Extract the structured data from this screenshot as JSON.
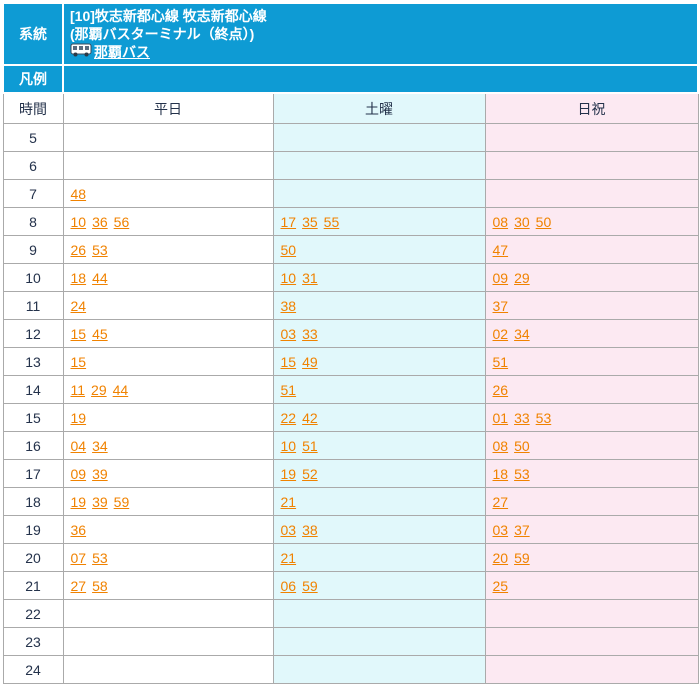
{
  "route": {
    "label": "系統",
    "title_line1": "[10]牧志新都心線 牧志新都心線",
    "title_line2": "(那覇バスターミナル（終点）)",
    "operator_link": "那覇バス",
    "bus_icon": "bus-icon"
  },
  "legend": {
    "label": "凡例",
    "content": ""
  },
  "columns": {
    "hour": "時間",
    "weekday": "平日",
    "saturday": "土曜",
    "holiday": "日祝"
  },
  "colors": {
    "header_bg": "#0e9bd4",
    "saturday_bg": "#e1f8fb",
    "holiday_bg": "#fce9f2",
    "link_orange": "#f08200",
    "text_navy": "#24324b",
    "border_gray": "#aaaaaa"
  },
  "timetable": {
    "rows": [
      {
        "hour": "5",
        "weekday": [],
        "saturday": [],
        "holiday": []
      },
      {
        "hour": "6",
        "weekday": [],
        "saturday": [],
        "holiday": []
      },
      {
        "hour": "7",
        "weekday": [
          "48"
        ],
        "saturday": [],
        "holiday": []
      },
      {
        "hour": "8",
        "weekday": [
          "10",
          "36",
          "56"
        ],
        "saturday": [
          "17",
          "35",
          "55"
        ],
        "holiday": [
          "08",
          "30",
          "50"
        ]
      },
      {
        "hour": "9",
        "weekday": [
          "26",
          "53"
        ],
        "saturday": [
          "50"
        ],
        "holiday": [
          "47"
        ]
      },
      {
        "hour": "10",
        "weekday": [
          "18",
          "44"
        ],
        "saturday": [
          "10",
          "31"
        ],
        "holiday": [
          "09",
          "29"
        ]
      },
      {
        "hour": "11",
        "weekday": [
          "24"
        ],
        "saturday": [
          "38"
        ],
        "holiday": [
          "37"
        ]
      },
      {
        "hour": "12",
        "weekday": [
          "15",
          "45"
        ],
        "saturday": [
          "03",
          "33"
        ],
        "holiday": [
          "02",
          "34"
        ]
      },
      {
        "hour": "13",
        "weekday": [
          "15"
        ],
        "saturday": [
          "15",
          "49"
        ],
        "holiday": [
          "51"
        ]
      },
      {
        "hour": "14",
        "weekday": [
          "11",
          "29",
          "44"
        ],
        "saturday": [
          "51"
        ],
        "holiday": [
          "26"
        ]
      },
      {
        "hour": "15",
        "weekday": [
          "19"
        ],
        "saturday": [
          "22",
          "42"
        ],
        "holiday": [
          "01",
          "33",
          "53"
        ]
      },
      {
        "hour": "16",
        "weekday": [
          "04",
          "34"
        ],
        "saturday": [
          "10",
          "51"
        ],
        "holiday": [
          "08",
          "50"
        ]
      },
      {
        "hour": "17",
        "weekday": [
          "09",
          "39"
        ],
        "saturday": [
          "19",
          "52"
        ],
        "holiday": [
          "18",
          "53"
        ]
      },
      {
        "hour": "18",
        "weekday": [
          "19",
          "39",
          "59"
        ],
        "saturday": [
          "21"
        ],
        "holiday": [
          "27"
        ]
      },
      {
        "hour": "19",
        "weekday": [
          "36"
        ],
        "saturday": [
          "03",
          "38"
        ],
        "holiday": [
          "03",
          "37"
        ]
      },
      {
        "hour": "20",
        "weekday": [
          "07",
          "53"
        ],
        "saturday": [
          "21"
        ],
        "holiday": [
          "20",
          "59"
        ]
      },
      {
        "hour": "21",
        "weekday": [
          "27",
          "58"
        ],
        "saturday": [
          "06",
          "59"
        ],
        "holiday": [
          "25"
        ]
      },
      {
        "hour": "22",
        "weekday": [],
        "saturday": [],
        "holiday": []
      },
      {
        "hour": "23",
        "weekday": [],
        "saturday": [],
        "holiday": []
      },
      {
        "hour": "24",
        "weekday": [],
        "saturday": [],
        "holiday": []
      }
    ]
  }
}
